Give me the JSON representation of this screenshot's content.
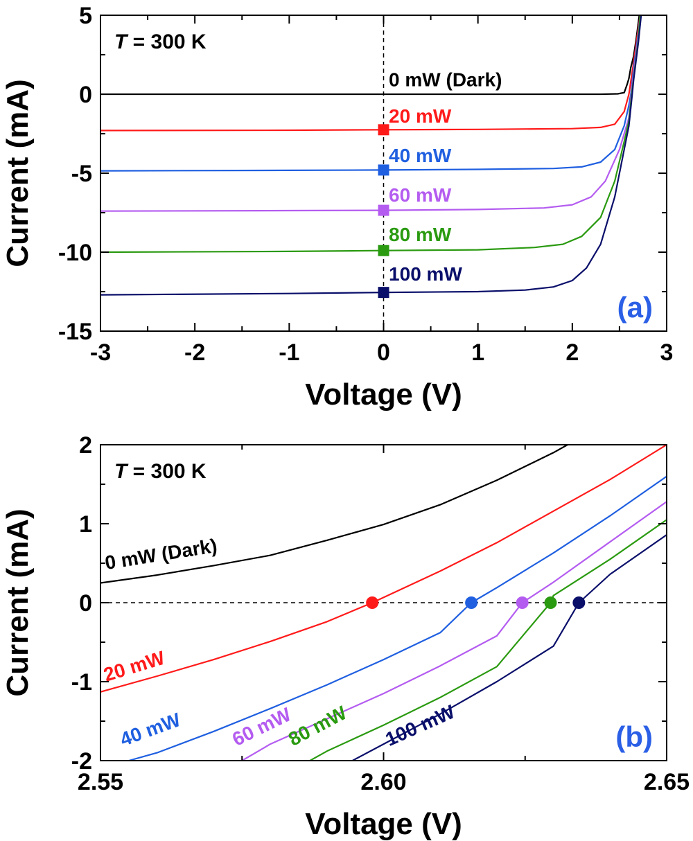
{
  "colors": {
    "dark": "#000000",
    "p20": "#ff1a1a",
    "p40": "#1f5fe0",
    "p60": "#b45cf0",
    "p80": "#2a9a10",
    "p100": "#0a0f6a",
    "panel_label": "#2a5fe6"
  },
  "chart_data": [
    {
      "type": "line",
      "panel_label": "(a)",
      "temperature_label": {
        "italic": "T",
        "rest": " = 300 K"
      },
      "xlabel": "Voltage (V)",
      "ylabel": "Current (mA)",
      "xlim": [
        -3,
        3
      ],
      "ylim": [
        -15,
        5
      ],
      "x_ticks": [
        {
          "value": -3,
          "label": "-3"
        },
        {
          "value": -2,
          "label": "-2"
        },
        {
          "value": -1,
          "label": "-1"
        },
        {
          "value": 0,
          "label": "0"
        },
        {
          "value": 1,
          "label": "1"
        },
        {
          "value": 2,
          "label": "2"
        },
        {
          "value": 3,
          "label": "3"
        }
      ],
      "y_ticks": [
        {
          "value": 5,
          "label": "5"
        },
        {
          "value": 0,
          "label": "0"
        },
        {
          "value": -5,
          "label": "-5"
        },
        {
          "value": -10,
          "label": "-10"
        },
        {
          "value": -15,
          "label": "-15"
        }
      ],
      "reference_line": {
        "axis": "x",
        "value": 0,
        "style": "dashed"
      },
      "series": [
        {
          "name": "0 mW (Dark)",
          "color_key": "dark",
          "label_x": -1.45,
          "label_y": 0.5,
          "points": [
            [
              -3,
              0
            ],
            [
              2.3,
              0
            ],
            [
              2.48,
              0.02
            ],
            [
              2.55,
              0.1
            ],
            [
              2.58,
              0.6
            ],
            [
              2.6,
              1.0
            ],
            [
              2.62,
              1.7
            ],
            [
              2.65,
              2.4
            ],
            [
              2.68,
              3.6
            ],
            [
              2.71,
              5
            ]
          ]
        },
        {
          "name": "20 mW",
          "color_key": "p20",
          "label_x": -1.45,
          "label_y": -1.8,
          "marker": {
            "x": 0,
            "y": -2.25,
            "shape": "square"
          },
          "points": [
            [
              -3,
              -2.3
            ],
            [
              -1,
              -2.28
            ],
            [
              0,
              -2.25
            ],
            [
              1,
              -2.23
            ],
            [
              2,
              -2.18
            ],
            [
              2.3,
              -2.1
            ],
            [
              2.45,
              -1.9
            ],
            [
              2.55,
              -1.1
            ],
            [
              2.6,
              0
            ],
            [
              2.65,
              2.0
            ],
            [
              2.7,
              4.2
            ],
            [
              2.72,
              5
            ]
          ]
        },
        {
          "name": "40 mW",
          "color_key": "p40",
          "label_x": -1.45,
          "label_y": -4.3,
          "marker": {
            "x": 0,
            "y": -4.8,
            "shape": "square"
          },
          "points": [
            [
              -3,
              -4.85
            ],
            [
              -1,
              -4.82
            ],
            [
              0,
              -4.8
            ],
            [
              1,
              -4.76
            ],
            [
              1.8,
              -4.7
            ],
            [
              2.1,
              -4.6
            ],
            [
              2.3,
              -4.3
            ],
            [
              2.45,
              -3.5
            ],
            [
              2.55,
              -2.0
            ],
            [
              2.6,
              -0.7
            ],
            [
              2.62,
              0
            ],
            [
              2.65,
              1.6
            ],
            [
              2.7,
              3.9
            ],
            [
              2.72,
              5
            ]
          ]
        },
        {
          "name": "60 mW",
          "color_key": "p60",
          "label_x": -1.45,
          "label_y": -6.8,
          "marker": {
            "x": 0,
            "y": -7.35,
            "shape": "square"
          },
          "points": [
            [
              -3,
              -7.4
            ],
            [
              -1,
              -7.37
            ],
            [
              0,
              -7.35
            ],
            [
              1,
              -7.3
            ],
            [
              1.7,
              -7.2
            ],
            [
              2.0,
              -7.0
            ],
            [
              2.2,
              -6.5
            ],
            [
              2.35,
              -5.5
            ],
            [
              2.5,
              -3.5
            ],
            [
              2.6,
              -1.5
            ],
            [
              2.625,
              0
            ],
            [
              2.65,
              1.3
            ],
            [
              2.7,
              3.7
            ],
            [
              2.72,
              5
            ]
          ]
        },
        {
          "name": "80 mW",
          "color_key": "p80",
          "label_x": -1.45,
          "label_y": -9.3,
          "marker": {
            "x": 0,
            "y": -9.9,
            "shape": "square"
          },
          "points": [
            [
              -3,
              -10.0
            ],
            [
              -1,
              -9.95
            ],
            [
              0,
              -9.9
            ],
            [
              1,
              -9.85
            ],
            [
              1.6,
              -9.7
            ],
            [
              1.9,
              -9.5
            ],
            [
              2.1,
              -9.0
            ],
            [
              2.3,
              -7.8
            ],
            [
              2.45,
              -5.5
            ],
            [
              2.55,
              -3.0
            ],
            [
              2.6,
              -1.7
            ],
            [
              2.63,
              0
            ],
            [
              2.65,
              1.0
            ],
            [
              2.7,
              3.5
            ],
            [
              2.72,
              5
            ]
          ]
        },
        {
          "name": "100 mW",
          "color_key": "p100",
          "label_x": -1.45,
          "label_y": -11.8,
          "marker": {
            "x": 0,
            "y": -12.55,
            "shape": "square"
          },
          "points": [
            [
              -3,
              -12.7
            ],
            [
              -1,
              -12.62
            ],
            [
              0,
              -12.55
            ],
            [
              1,
              -12.5
            ],
            [
              1.5,
              -12.4
            ],
            [
              1.8,
              -12.2
            ],
            [
              2.0,
              -11.8
            ],
            [
              2.15,
              -11.0
            ],
            [
              2.3,
              -9.5
            ],
            [
              2.45,
              -6.5
            ],
            [
              2.55,
              -3.5
            ],
            [
              2.6,
              -2.0
            ],
            [
              2.635,
              0
            ],
            [
              2.65,
              0.9
            ],
            [
              2.7,
              3.3
            ],
            [
              2.73,
              5
            ]
          ]
        }
      ]
    },
    {
      "type": "line",
      "panel_label": "(b)",
      "temperature_label": {
        "italic": "T",
        "rest": " = 300 K"
      },
      "xlabel": "Voltage (V)",
      "ylabel": "Current (mA)",
      "xlim": [
        2.55,
        2.65
      ],
      "ylim": [
        -2,
        2
      ],
      "x_ticks": [
        {
          "value": 2.55,
          "label": "2.55"
        },
        {
          "value": 2.6,
          "label": "2.60"
        },
        {
          "value": 2.65,
          "label": "2.65"
        }
      ],
      "y_ticks": [
        {
          "value": 2,
          "label": "2"
        },
        {
          "value": 1,
          "label": "1"
        },
        {
          "value": 0,
          "label": "0"
        },
        {
          "value": -1,
          "label": "-1"
        },
        {
          "value": -2,
          "label": "-2"
        }
      ],
      "reference_line": {
        "axis": "y",
        "value": 0,
        "style": "dashed"
      },
      "series": [
        {
          "name": "0 mW (Dark)",
          "color_key": "dark",
          "label_x": 2.551,
          "label_y": 0.42,
          "label_angle": -9,
          "points": [
            [
              2.55,
              0.25
            ],
            [
              2.56,
              0.35
            ],
            [
              2.57,
              0.47
            ],
            [
              2.58,
              0.6
            ],
            [
              2.59,
              0.79
            ],
            [
              2.6,
              0.99
            ],
            [
              2.61,
              1.24
            ],
            [
              2.62,
              1.55
            ],
            [
              2.63,
              1.9
            ],
            [
              2.6325,
              2.0
            ]
          ]
        },
        {
          "name": "20 mW",
          "color_key": "p20",
          "label_x": 2.551,
          "label_y": -1.0,
          "label_angle": -17,
          "points": [
            [
              2.55,
              -1.13
            ],
            [
              2.56,
              -0.93
            ],
            [
              2.57,
              -0.72
            ],
            [
              2.58,
              -0.49
            ],
            [
              2.59,
              -0.24
            ],
            [
              2.598,
              0
            ],
            [
              2.61,
              0.4
            ],
            [
              2.62,
              0.76
            ],
            [
              2.63,
              1.16
            ],
            [
              2.64,
              1.56
            ],
            [
              2.65,
              2.0
            ]
          ]
        },
        {
          "name": "40 mW",
          "color_key": "p40",
          "label_x": 2.554,
          "label_y": -1.82,
          "label_angle": -20,
          "points": [
            [
              2.555,
              -2.0
            ],
            [
              2.56,
              -1.9
            ],
            [
              2.57,
              -1.63
            ],
            [
              2.58,
              -1.34
            ],
            [
              2.59,
              -1.04
            ],
            [
              2.6,
              -0.72
            ],
            [
              2.61,
              -0.38
            ],
            [
              2.6155,
              0
            ],
            [
              2.62,
              0.19
            ],
            [
              2.63,
              0.63
            ],
            [
              2.64,
              1.1
            ],
            [
              2.65,
              1.6
            ]
          ]
        },
        {
          "name": "60 mW",
          "color_key": "p60",
          "label_x": 2.574,
          "label_y": -1.82,
          "label_angle": -26,
          "points": [
            [
              2.575,
              -2.0
            ],
            [
              2.58,
              -1.79
            ],
            [
              2.59,
              -1.47
            ],
            [
              2.6,
              -1.15
            ],
            [
              2.61,
              -0.8
            ],
            [
              2.62,
              -0.42
            ],
            [
              2.6245,
              0
            ],
            [
              2.63,
              0.26
            ],
            [
              2.64,
              0.77
            ],
            [
              2.65,
              1.28
            ]
          ]
        },
        {
          "name": "80 mW",
          "color_key": "p80",
          "label_x": 2.584,
          "label_y": -1.82,
          "label_angle": -28,
          "points": [
            [
              2.587,
              -2.0
            ],
            [
              2.59,
              -1.88
            ],
            [
              2.6,
              -1.55
            ],
            [
              2.61,
              -1.2
            ],
            [
              2.62,
              -0.81
            ],
            [
              2.6295,
              0
            ],
            [
              2.63,
              0.09
            ],
            [
              2.64,
              0.55
            ],
            [
              2.65,
              1.05
            ]
          ]
        },
        {
          "name": "100 mW",
          "color_key": "p100",
          "label_x": 2.601,
          "label_y": -1.82,
          "label_angle": -24,
          "points": [
            [
              2.5945,
              -2.0
            ],
            [
              2.6,
              -1.79
            ],
            [
              2.61,
              -1.41
            ],
            [
              2.62,
              -1.0
            ],
            [
              2.63,
              -0.55
            ],
            [
              2.6345,
              0
            ],
            [
              2.64,
              0.36
            ],
            [
              2.65,
              0.86
            ]
          ]
        }
      ],
      "markers": [
        {
          "color_key": "p20",
          "x": 2.598,
          "y": 0,
          "shape": "circle"
        },
        {
          "color_key": "p40",
          "x": 2.6155,
          "y": 0,
          "shape": "circle"
        },
        {
          "color_key": "p60",
          "x": 2.6245,
          "y": 0,
          "shape": "circle"
        },
        {
          "color_key": "p80",
          "x": 2.6295,
          "y": 0,
          "shape": "circle"
        },
        {
          "color_key": "p100",
          "x": 2.6345,
          "y": 0,
          "shape": "circle"
        }
      ]
    }
  ]
}
